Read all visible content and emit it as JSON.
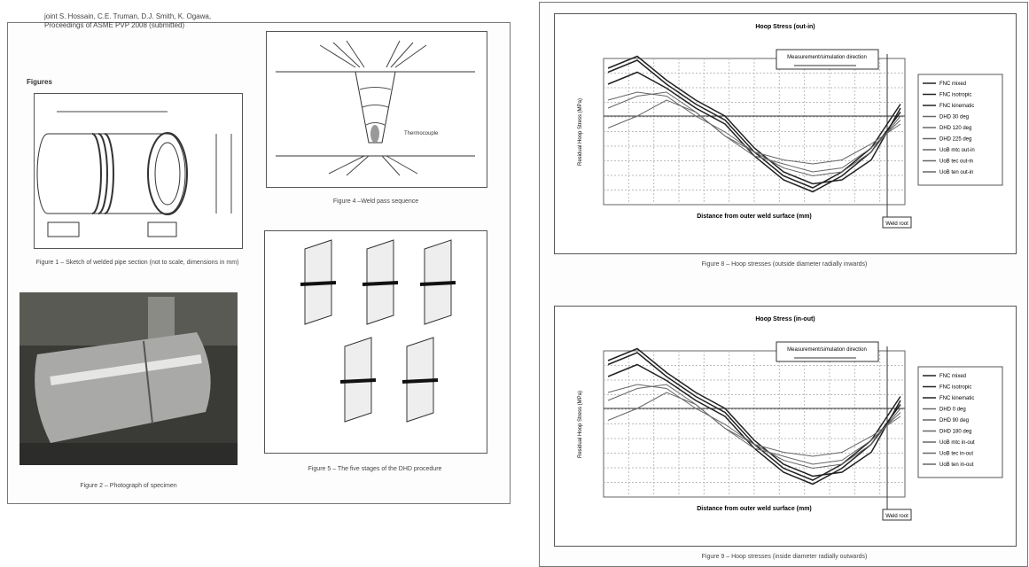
{
  "left_page": {
    "reference": "joint S. Hossain, C.E. Truman, D.J. Smith, K. Ogawa, Proceedings of ASME PVP 2008 (submitted)",
    "heading": "Figures",
    "figure1_caption": "Figure 1 – Sketch of welded pipe section (not to scale, dimensions in mm)",
    "figure2_caption": "Figure 2 – Photograph of specimen",
    "figure4_label": "Thermocouple",
    "figure4_caption": "Figure 4 –Weld pass sequence",
    "figure5_caption": "Figure 5 – The five stages of the DHD procedure"
  },
  "right_page": {
    "charts": [
      {
        "title": "Hoop Stress (out-in)",
        "annotation": "Measurement/simulation direction",
        "x_label": "Distance from outer weld surface (mm)",
        "y_label": "Residual Hoop Stress (MPa)",
        "legend": [
          "FNC mixed",
          "FNC isotropic",
          "FNC kinematic",
          "DHD 30 deg",
          "DHD 120 deg",
          "DHD 225 deg",
          "UoB mtc out-in",
          "UoB tec out-in",
          "UoB ten out-in"
        ],
        "marker": "Weld root",
        "caption": "Figure 8 – Hoop stresses (outside diameter radially inwards)"
      },
      {
        "title": "Hoop Stress (in-out)",
        "annotation": "Measurement/simulation direction",
        "x_label": "Distance from outer weld surface (mm)",
        "y_label": "Residual Hoop Stress (MPa)",
        "legend": [
          "FNC mixed",
          "FNC isotropic",
          "FNC kinematic",
          "DHD 0 deg",
          "DHD 90 deg",
          "DHD 180 deg",
          "UoB mtc in-out",
          "UoB tec in-out",
          "UoB ten in-out"
        ],
        "marker": "Weld root",
        "caption": "Figure 9 – Hoop stresses (inside diameter radially outwards)"
      }
    ]
  }
}
